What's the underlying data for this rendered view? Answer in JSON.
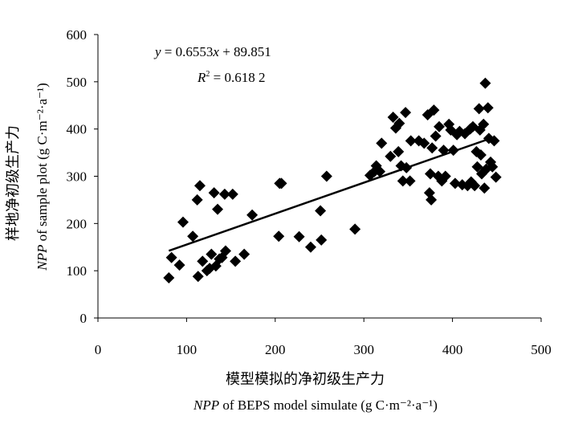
{
  "chart_data": {
    "type": "scatter",
    "xlim": [
      0,
      500
    ],
    "ylim": [
      0,
      600
    ],
    "xticks": [
      0,
      100,
      200,
      300,
      400,
      500
    ],
    "yticks": [
      0,
      100,
      200,
      300,
      400,
      500,
      600
    ],
    "grid": false,
    "xlabel_cn": "模型模拟的净初级生产力",
    "xlabel_en_prefix": "NPP",
    "xlabel_en_suffix": " of BEPS model simulate (g C·m⁻²·a⁻¹)",
    "ylabel_cn": "样地净初级生产力",
    "ylabel_en_prefix": "NPP",
    "ylabel_en_suffix": " of sample plot (g C·m⁻²·a⁻¹)",
    "equation_y": "y",
    "equation_mid": " = 0.6553",
    "equation_x": "x",
    "equation_tail": " + 89.851",
    "r2_label": "R",
    "r2_sup": "2",
    "r2_value": " = 0.618 2",
    "trendline": {
      "slope": 0.6553,
      "intercept": 89.851,
      "x_range": [
        80,
        440
      ]
    },
    "marker_color": "#000000",
    "points": [
      [
        80,
        85
      ],
      [
        83,
        128
      ],
      [
        92,
        112
      ],
      [
        96,
        203
      ],
      [
        107,
        173
      ],
      [
        112,
        250
      ],
      [
        113,
        88
      ],
      [
        115,
        280
      ],
      [
        118,
        120
      ],
      [
        123,
        100
      ],
      [
        126,
        105
      ],
      [
        128,
        135
      ],
      [
        131,
        265
      ],
      [
        133,
        110
      ],
      [
        135,
        230
      ],
      [
        137,
        125
      ],
      [
        140,
        128
      ],
      [
        143,
        262
      ],
      [
        144,
        142
      ],
      [
        152,
        262
      ],
      [
        155,
        120
      ],
      [
        165,
        135
      ],
      [
        174,
        218
      ],
      [
        204,
        173
      ],
      [
        205,
        285
      ],
      [
        207,
        285
      ],
      [
        227,
        172
      ],
      [
        240,
        150
      ],
      [
        251,
        227
      ],
      [
        252,
        165
      ],
      [
        258,
        300
      ],
      [
        290,
        188
      ],
      [
        307,
        302
      ],
      [
        312,
        310
      ],
      [
        314,
        322
      ],
      [
        318,
        310
      ],
      [
        320,
        370
      ],
      [
        330,
        342
      ],
      [
        333,
        425
      ],
      [
        336,
        402
      ],
      [
        339,
        352
      ],
      [
        340,
        412
      ],
      [
        342,
        322
      ],
      [
        344,
        290
      ],
      [
        347,
        435
      ],
      [
        348,
        318
      ],
      [
        352,
        290
      ],
      [
        353,
        375
      ],
      [
        362,
        375
      ],
      [
        368,
        370
      ],
      [
        372,
        430
      ],
      [
        374,
        265
      ],
      [
        375,
        305
      ],
      [
        376,
        250
      ],
      [
        377,
        360
      ],
      [
        379,
        440
      ],
      [
        381,
        385
      ],
      [
        384,
        300
      ],
      [
        385,
        405
      ],
      [
        388,
        290
      ],
      [
        390,
        355
      ],
      [
        392,
        300
      ],
      [
        396,
        410
      ],
      [
        398,
        398
      ],
      [
        401,
        355
      ],
      [
        403,
        285
      ],
      [
        405,
        388
      ],
      [
        408,
        395
      ],
      [
        411,
        282
      ],
      [
        414,
        390
      ],
      [
        417,
        280
      ],
      [
        420,
        400
      ],
      [
        421,
        288
      ],
      [
        423,
        405
      ],
      [
        425,
        280
      ],
      [
        427,
        352
      ],
      [
        428,
        320
      ],
      [
        430,
        443
      ],
      [
        431,
        398
      ],
      [
        432,
        345
      ],
      [
        433,
        305
      ],
      [
        435,
        410
      ],
      [
        436,
        275
      ],
      [
        437,
        497
      ],
      [
        438,
        315
      ],
      [
        440,
        445
      ],
      [
        441,
        380
      ],
      [
        443,
        330
      ],
      [
        445,
        320
      ],
      [
        447,
        375
      ],
      [
        449,
        298
      ]
    ]
  }
}
